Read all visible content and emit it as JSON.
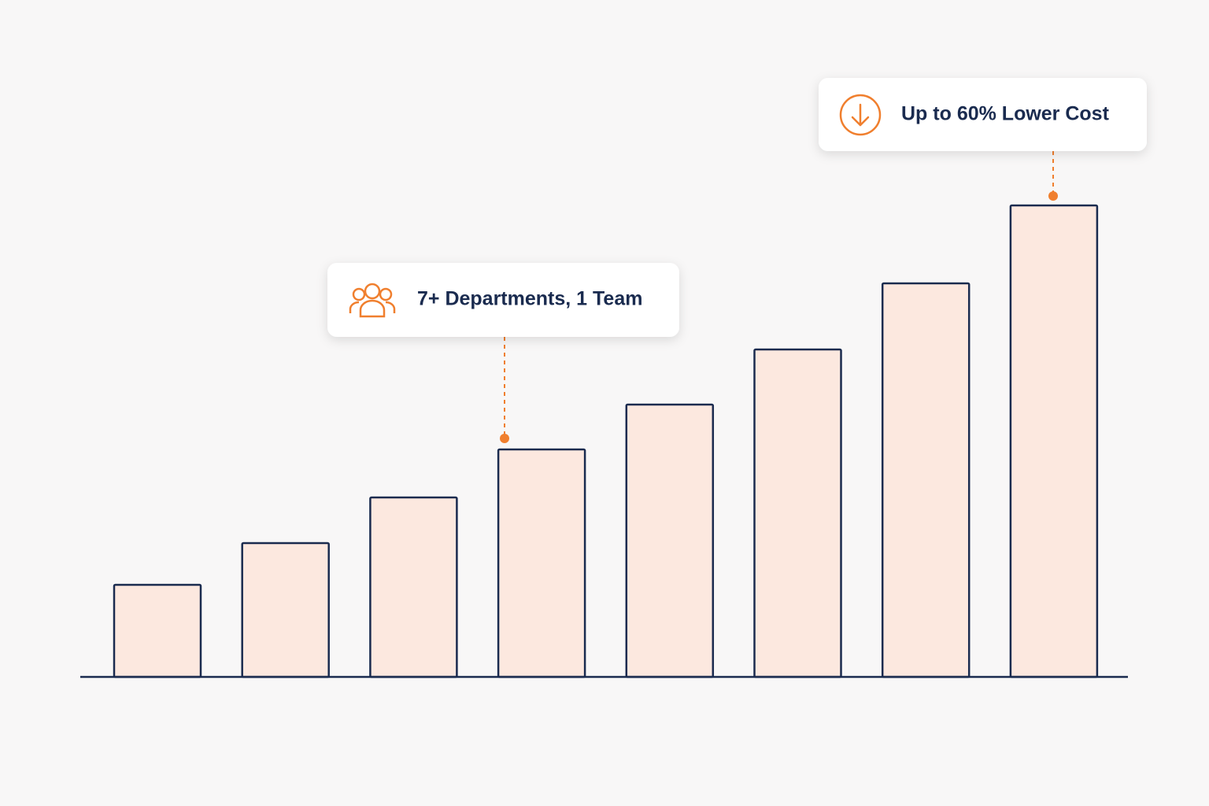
{
  "chart_data": {
    "type": "bar",
    "values": [
      117,
      170,
      228,
      289,
      346,
      416,
      500,
      599
    ],
    "color": "#fce8df",
    "edge_color": "#1a2b4f",
    "ylim": [
      0,
      600
    ],
    "annotations": [
      "7+ Departments, 1 Team",
      "Up to 60% Lower Cost"
    ]
  }
}
